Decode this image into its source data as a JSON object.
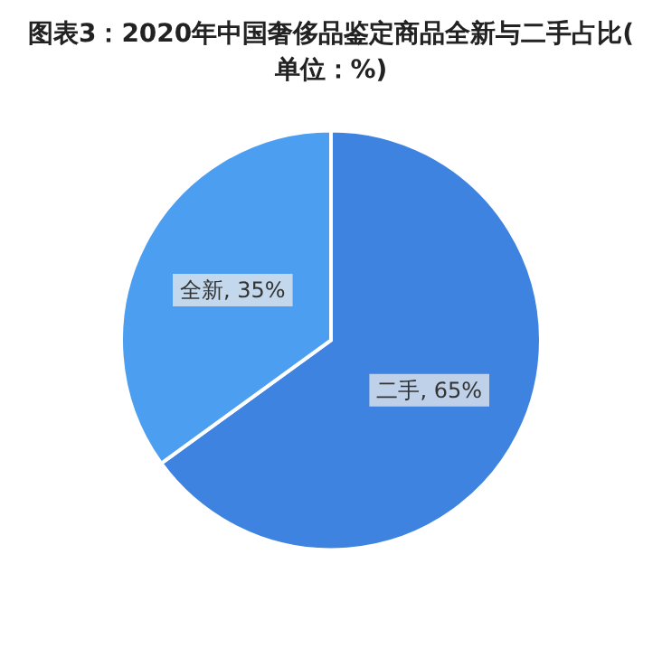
{
  "chart_data": {
    "type": "pie",
    "title": "图表3：2020年中国奢侈品鉴定商品全新与二手占比(单位：%)",
    "categories": [
      "二手",
      "全新"
    ],
    "values": [
      65,
      35
    ],
    "value_labels": [
      "65%",
      "35%"
    ],
    "colors": [
      "#3f83e0",
      "#4b9ef0"
    ],
    "legend": false
  }
}
